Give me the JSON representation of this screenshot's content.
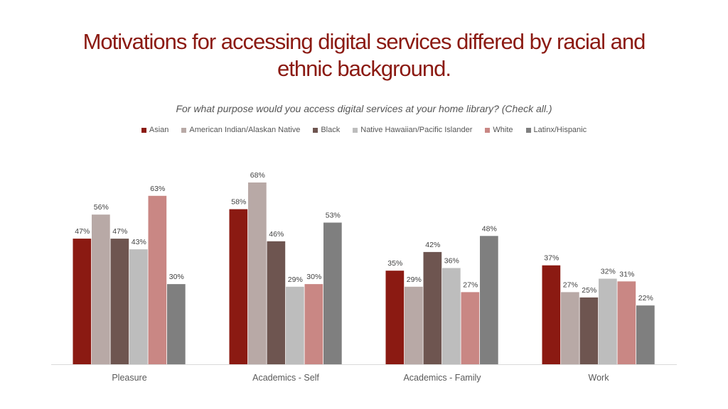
{
  "title_line1": "Motivations for accessing digital services differed by racial and",
  "title_line2": "ethnic background.",
  "subtitle": "For what purpose would you access digital services at your home library? (Check all.)",
  "chart_data": {
    "type": "bar",
    "title": "Motivations for accessing digital services differed by racial and ethnic background.",
    "subtitle": "For what purpose would you access digital services at your home library? (Check all.)",
    "categories": [
      "Pleasure",
      "Academics - Self",
      "Academics - Family",
      "Work"
    ],
    "series": [
      {
        "name": "Asian",
        "color": "#8b1a12",
        "values": [
          47,
          58,
          35,
          37
        ]
      },
      {
        "name": "American Indian/Alaskan Native",
        "color": "#b8a9a6",
        "values": [
          56,
          68,
          29,
          27
        ]
      },
      {
        "name": "Black",
        "color": "#6e5550",
        "values": [
          47,
          46,
          42,
          25
        ]
      },
      {
        "name": "Native Hawaiian/Pacific Islander",
        "color": "#bdbdbd",
        "values": [
          43,
          29,
          36,
          32
        ]
      },
      {
        "name": "White",
        "color": "#c98784",
        "values": [
          63,
          30,
          27,
          31
        ]
      },
      {
        "name": "Latinx/Hispanic",
        "color": "#7f7f7f",
        "values": [
          30,
          53,
          48,
          22
        ]
      }
    ],
    "value_format": "percent",
    "ylim": [
      0,
      70
    ],
    "grid": false,
    "legend_position": "top"
  }
}
